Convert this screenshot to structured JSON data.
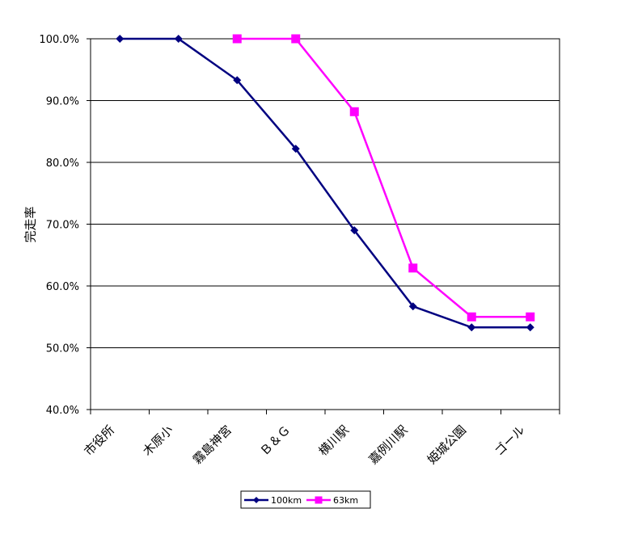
{
  "chart_data": {
    "type": "line",
    "title": "",
    "xlabel": "",
    "ylabel": "完走率",
    "categories": [
      "市役所",
      "木原小",
      "霧島神宮",
      "Ｂ＆Ｇ",
      "横川駅",
      "嘉例川駅",
      "姫城公園",
      "ゴール"
    ],
    "ylim": [
      40,
      100
    ],
    "y_ticks": [
      "40.0%",
      "50.0%",
      "60.0%",
      "70.0%",
      "80.0%",
      "90.0%",
      "100.0%"
    ],
    "grid": true,
    "legend_position": "bottom",
    "series": [
      {
        "name": "100km",
        "color": "#000080",
        "marker": "diamond",
        "values": [
          100,
          100,
          93.3,
          82.2,
          69.0,
          56.7,
          53.3,
          53.3
        ]
      },
      {
        "name": "63km",
        "color": "#ff00ff",
        "marker": "square",
        "values": [
          null,
          null,
          100,
          100,
          88.2,
          62.9,
          55.0,
          55.0
        ]
      }
    ]
  }
}
